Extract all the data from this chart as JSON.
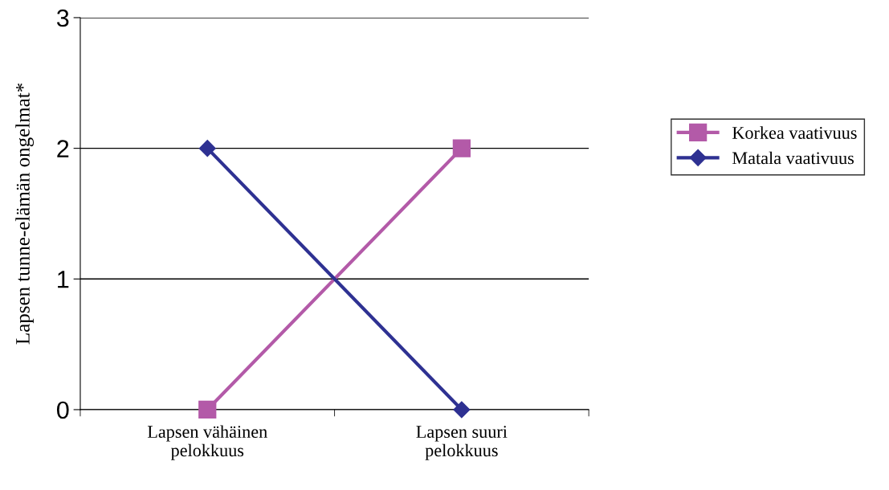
{
  "chart_data": {
    "type": "line",
    "ylabel": "Lapsen tunne-elämän ongelmat*",
    "categories": [
      "Lapsen vähäinen pelokkuus",
      "Lapsen suuri pelokkuus"
    ],
    "series": [
      {
        "name": "Korkea vaativuus",
        "color": "#b35aa8",
        "values": [
          0,
          2
        ],
        "marker": "square"
      },
      {
        "name": "Matala vaativuus",
        "color": "#2e3192",
        "values": [
          2,
          0
        ],
        "marker": "diamond"
      }
    ],
    "ylim": [
      0,
      3
    ],
    "yticks": [
      0,
      1,
      2,
      3
    ],
    "grid": "y",
    "legend": "right",
    "line_style": "solid"
  }
}
